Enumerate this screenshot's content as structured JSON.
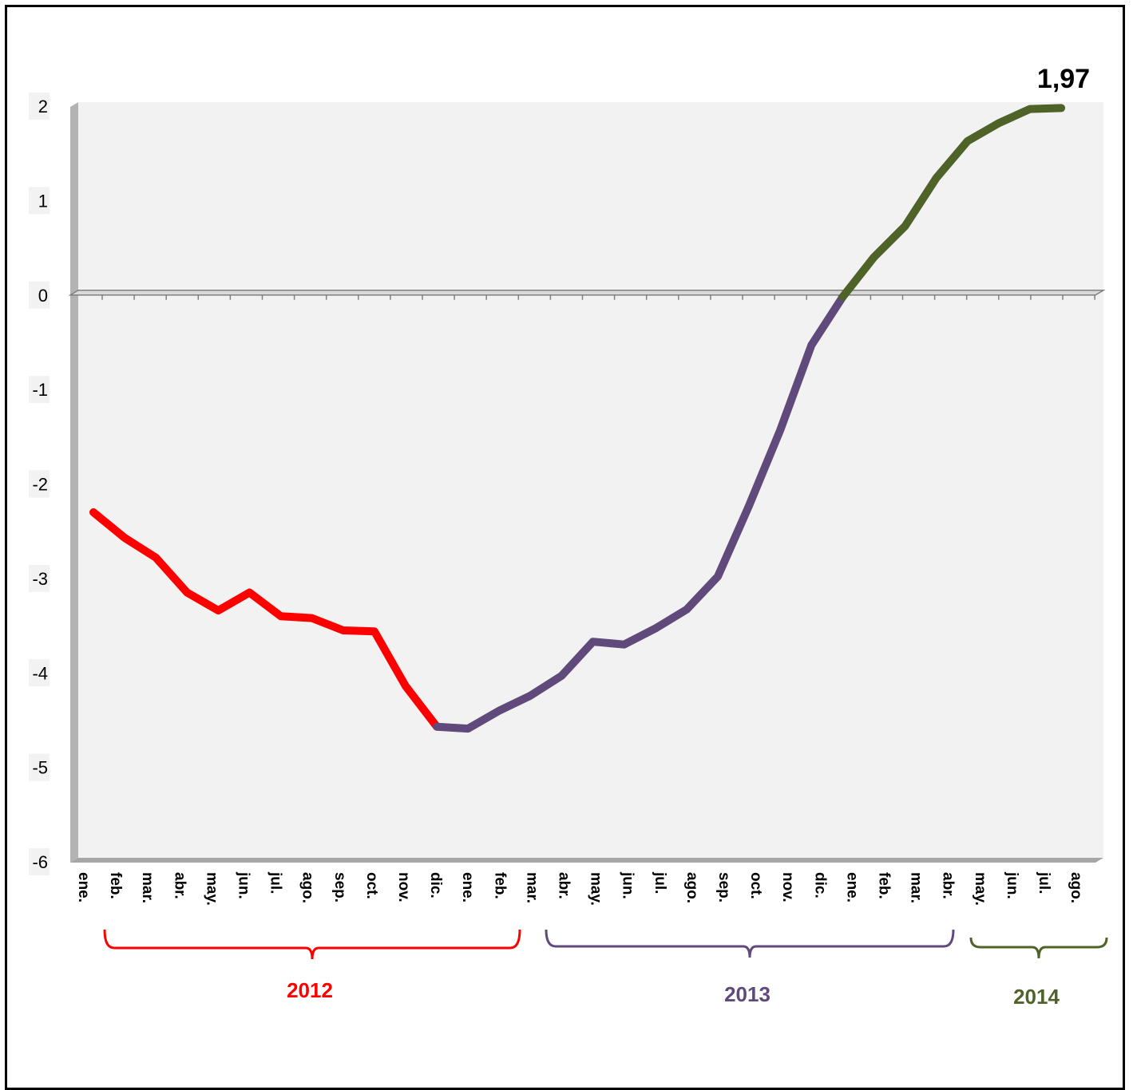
{
  "chart_data": {
    "type": "line",
    "title": "",
    "xlabel": "",
    "ylabel": "",
    "ylim": [
      -6,
      2
    ],
    "yticks": [
      "2",
      "1",
      "0",
      "-1",
      "-2",
      "-3",
      "-4",
      "-5",
      "-6"
    ],
    "ytick_values": [
      2,
      1,
      0,
      -1,
      -2,
      -3,
      -4,
      -5,
      -6
    ],
    "grid": false,
    "categories": [
      "ene.",
      "feb.",
      "mar.",
      "abr.",
      "may.",
      "jun.",
      "jul.",
      "ago.",
      "sep.",
      "oct.",
      "nov.",
      "dic.",
      "ene.",
      "feb.",
      "mar.",
      "abr.",
      "may.",
      "jun.",
      "jul.",
      "ago.",
      "sep.",
      "oct.",
      "nov.",
      "dic.",
      "ene.",
      "feb.",
      "mar.",
      "abr.",
      "may.",
      "jun.",
      "jul.",
      "ago."
    ],
    "values": [
      -2.3,
      -2.57,
      -2.78,
      -3.15,
      -3.34,
      -3.15,
      -3.4,
      -3.42,
      -3.55,
      -3.56,
      -4.14,
      -4.57,
      -4.59,
      -4.4,
      -4.24,
      -4.03,
      -3.67,
      -3.7,
      -3.53,
      -3.33,
      -2.98,
      -2.23,
      -1.43,
      -0.53,
      -0.02,
      0.4,
      0.73,
      1.24,
      1.63,
      1.82,
      1.97,
      1.98
    ],
    "segments": [
      {
        "name": "2012",
        "start": 0,
        "end": 11,
        "color": "#ff0000"
      },
      {
        "name": "2013",
        "start": 11,
        "end": 24,
        "color": "#604a7b"
      },
      {
        "name": "2014",
        "start": 24,
        "end": 31,
        "color": "#4f6228"
      }
    ],
    "annotation": {
      "text": "1,97",
      "index": 30
    },
    "colors": {
      "plot_bg": "#f2f2f2",
      "axis": "#808080",
      "frame": "#000000"
    }
  }
}
